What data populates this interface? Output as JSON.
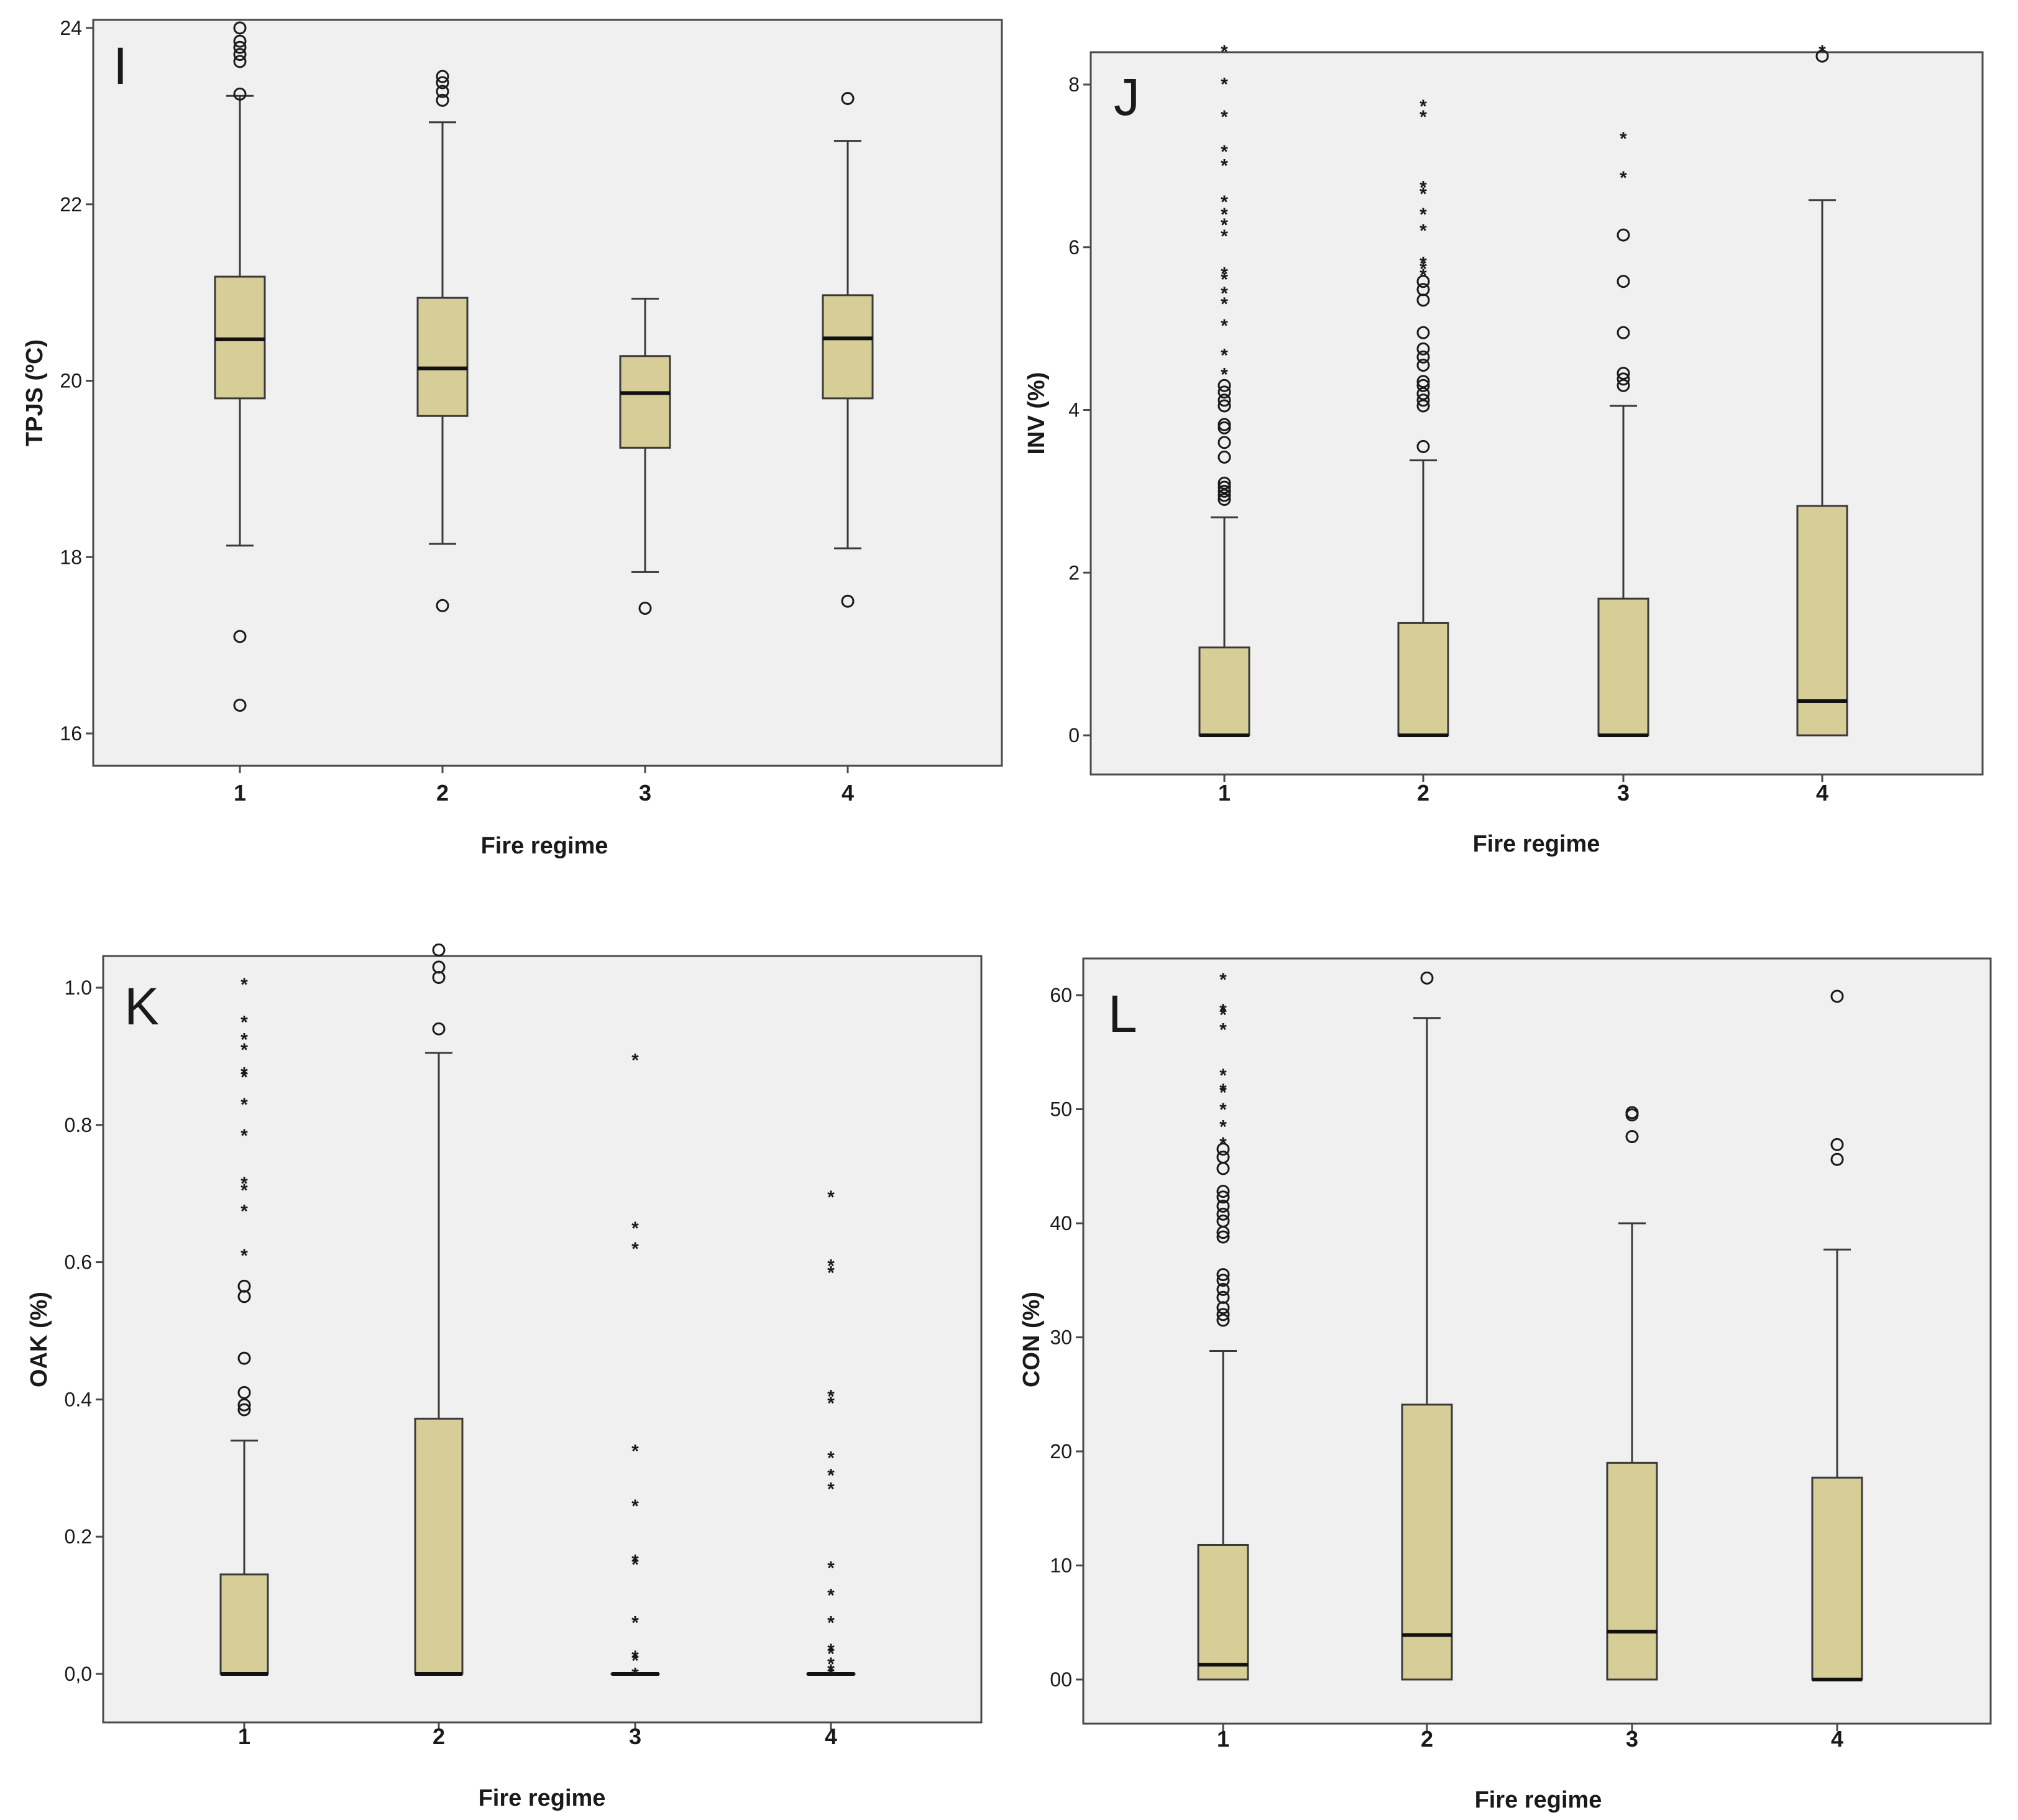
{
  "figure": {
    "xlabel": "Fire regime",
    "colors": {
      "box": "#d6cd97",
      "panel_bg": "#f0f0f0",
      "frame": "#4a4a4a",
      "ink": "#1a1a1a"
    },
    "extreme_symbol": "*"
  },
  "chart_data": [
    {
      "type": "box",
      "panel_letter": "I",
      "xlabel": "Fire regime",
      "ylabel": "TPJS (ºC)",
      "ylim": [
        15.6,
        24.5
      ],
      "yticks": [
        16,
        18,
        20,
        22,
        24
      ],
      "ytick_labels": [
        "16",
        "18",
        "20",
        "22",
        "24"
      ],
      "categories": [
        "1",
        "2",
        "3",
        "4"
      ],
      "boxes": [
        {
          "q1": 19.8,
          "median": 20.47,
          "q3": 21.18,
          "whisker_low": 18.13,
          "whisker_high": 23.23,
          "outliers": [
            16.32,
            17.1,
            23.25,
            23.62,
            23.7,
            23.78,
            23.85,
            24.0
          ],
          "extremes": []
        },
        {
          "q1": 19.6,
          "median": 20.14,
          "q3": 20.94,
          "whisker_low": 18.15,
          "whisker_high": 22.93,
          "outliers": [
            17.45,
            23.18,
            23.28,
            23.38,
            23.45
          ],
          "extremes": []
        },
        {
          "q1": 19.24,
          "median": 19.86,
          "q3": 20.28,
          "whisker_low": 17.83,
          "whisker_high": 20.93,
          "outliers": [
            17.42
          ],
          "extremes": []
        },
        {
          "q1": 19.8,
          "median": 20.48,
          "q3": 20.97,
          "whisker_low": 18.1,
          "whisker_high": 22.72,
          "outliers": [
            17.5,
            23.2
          ],
          "extremes": []
        }
      ]
    },
    {
      "type": "box",
      "panel_letter": "J",
      "xlabel": "Fire regime",
      "ylabel": "INV (%)",
      "ylim": [
        -0.4,
        8.45
      ],
      "yticks": [
        0,
        2,
        4,
        6,
        8
      ],
      "ytick_labels": [
        "0",
        "2",
        "4",
        "6",
        "8"
      ],
      "categories": [
        "1",
        "2",
        "3",
        "4"
      ],
      "boxes": [
        {
          "q1": 0,
          "median": 0,
          "q3": 1.08,
          "whisker_low": 0,
          "whisker_high": 2.68,
          "outliers": [
            2.9,
            2.95,
            3.0,
            3.05,
            3.1,
            3.42,
            3.6,
            3.78,
            3.82,
            4.05,
            4.12,
            4.22,
            4.3
          ],
          "extremes": [
            4.48,
            4.72,
            5.08,
            5.35,
            5.48,
            5.65,
            5.72,
            6.18,
            6.32,
            6.45,
            6.6,
            7.05,
            7.22,
            7.65,
            8.05,
            8.45
          ]
        },
        {
          "q1": 0,
          "median": 0,
          "q3": 1.38,
          "whisker_low": 0,
          "whisker_high": 3.38,
          "outliers": [
            3.55,
            4.05,
            4.12,
            4.2,
            4.3,
            4.35,
            4.55,
            4.65,
            4.75,
            4.95,
            5.35,
            5.48,
            5.58
          ],
          "extremes": [
            5.7,
            5.78,
            5.85,
            6.25,
            6.45,
            6.7,
            6.78,
            7.65,
            7.78
          ]
        },
        {
          "q1": 0,
          "median": 0,
          "q3": 1.68,
          "whisker_low": 0,
          "whisker_high": 4.05,
          "outliers": [
            4.3,
            4.38,
            4.45,
            4.95,
            5.58,
            6.15
          ],
          "extremes": [
            6.9,
            7.38
          ]
        },
        {
          "q1": 0,
          "median": 0.42,
          "q3": 2.82,
          "whisker_low": 0,
          "whisker_high": 6.58,
          "outliers": [
            8.35
          ],
          "extremes": [
            8.45
          ]
        }
      ]
    },
    {
      "type": "box",
      "panel_letter": "K",
      "xlabel": "Fire regime",
      "ylabel": "OAK (%)",
      "ylim": [
        -0.055,
        1.055
      ],
      "yticks": [
        0,
        0.2,
        0.4,
        0.6,
        0.8,
        1.0
      ],
      "ytick_labels": [
        "0,0",
        "0.2",
        "0.4",
        "0.6",
        "0.8",
        "1.0"
      ],
      "categories": [
        "1",
        "2",
        "3",
        "4"
      ],
      "boxes": [
        {
          "q1": 0,
          "median": 0,
          "q3": 0.145,
          "whisker_low": 0,
          "whisker_high": 0.34,
          "outliers": [
            0.385,
            0.392,
            0.41,
            0.46,
            0.55,
            0.565
          ],
          "extremes": [
            0.615,
            0.68,
            0.71,
            0.72,
            0.79,
            0.835,
            0.875,
            0.88,
            0.915,
            0.93,
            0.955,
            1.01
          ]
        },
        {
          "q1": 0,
          "median": 0,
          "q3": 0.372,
          "whisker_low": 0,
          "whisker_high": 0.905,
          "outliers": [
            0.94,
            1.015,
            1.03,
            1.055
          ],
          "extremes": []
        },
        {
          "q1": 0,
          "median": 0,
          "q3": 0,
          "whisker_low": 0,
          "whisker_high": 0,
          "outliers": [],
          "extremes": [
            0.005,
            0.025,
            0.03,
            0.08,
            0.165,
            0.17,
            0.25,
            0.33,
            0.625,
            0.655,
            0.9
          ]
        },
        {
          "q1": 0,
          "median": 0,
          "q3": 0,
          "whisker_low": 0,
          "whisker_high": 0,
          "outliers": [],
          "extremes": [
            0.005,
            0.01,
            0.02,
            0.035,
            0.04,
            0.08,
            0.12,
            0.16,
            0.275,
            0.295,
            0.32,
            0.4,
            0.41,
            0.59,
            0.6,
            0.7
          ]
        }
      ]
    },
    {
      "type": "box",
      "panel_letter": "L",
      "xlabel": "Fire regime",
      "ylabel": "CON (%)",
      "ylim": [
        -3.4,
        63.3
      ],
      "yticks": [
        0,
        10,
        20,
        30,
        40,
        50,
        60
      ],
      "ytick_labels": [
        "00",
        "10",
        "20",
        "30",
        "40",
        "50",
        "60"
      ],
      "categories": [
        "1",
        "2",
        "3",
        "4"
      ],
      "boxes": [
        {
          "q1": 0,
          "median": 1.3,
          "q3": 11.8,
          "whisker_low": 0,
          "whisker_high": 28.8,
          "outliers": [
            31.5,
            32.0,
            32.6,
            33.5,
            34.2,
            35.0,
            35.5,
            38.8,
            39.2,
            40.2,
            40.8,
            41.5,
            42.3,
            42.8,
            44.8,
            45.8,
            46.5
          ],
          "extremes": [
            47.3,
            48.8,
            50.3,
            51.8,
            52.0,
            53.3,
            57.3,
            58.6,
            59.0,
            61.7
          ]
        },
        {
          "q1": 0,
          "median": 3.9,
          "q3": 24.1,
          "whisker_low": 0,
          "whisker_high": 58.0,
          "outliers": [
            61.5
          ],
          "extremes": []
        },
        {
          "q1": 0,
          "median": 4.2,
          "q3": 19.0,
          "whisker_low": 0,
          "whisker_high": 40.0,
          "outliers": [
            47.6,
            49.5,
            49.7
          ],
          "extremes": []
        },
        {
          "q1": 0,
          "median": 0,
          "q3": 17.7,
          "whisker_low": 0,
          "whisker_high": 37.7,
          "outliers": [
            45.6,
            46.9,
            59.9
          ],
          "extremes": []
        }
      ]
    }
  ]
}
